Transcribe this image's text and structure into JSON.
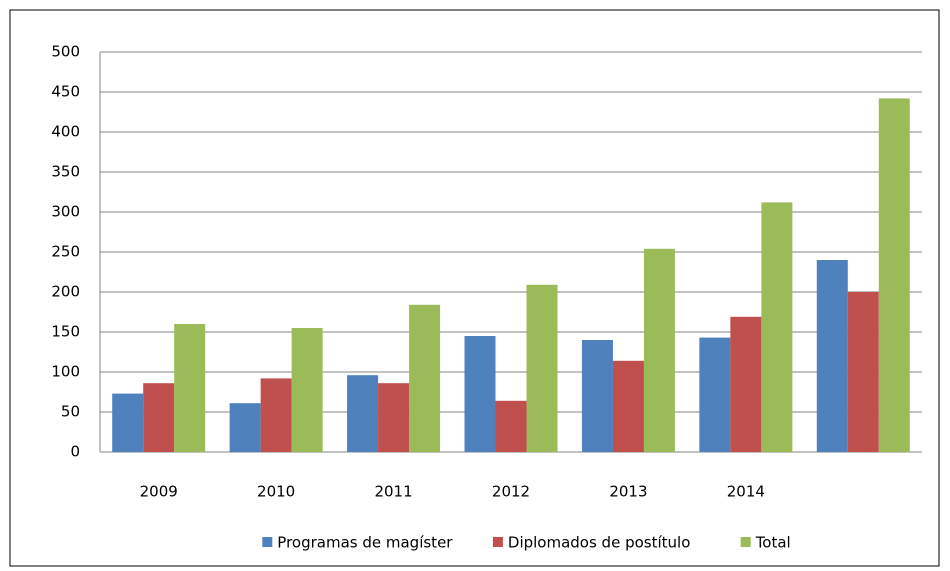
{
  "chart_data": {
    "type": "bar",
    "categories": [
      "2009",
      "2010",
      "2011",
      "2012",
      "2013",
      "2014",
      null
    ],
    "series": [
      {
        "name": "Programas de magíster",
        "color": "#4f81bd",
        "values": [
          73,
          61,
          96,
          145,
          140,
          143,
          240
        ]
      },
      {
        "name": "Diplomados de postítulo",
        "color": "#c0504d",
        "values": [
          86,
          92,
          86,
          64,
          114,
          169,
          200
        ]
      },
      {
        "name": "Total",
        "color": "#9bbb59",
        "values": [
          160,
          155,
          184,
          209,
          254,
          312,
          442
        ]
      }
    ],
    "ylim": [
      0,
      500
    ],
    "yticks": [
      0,
      50,
      100,
      150,
      200,
      250,
      300,
      350,
      400,
      450,
      500
    ],
    "grid": true,
    "legend": "bottom"
  }
}
